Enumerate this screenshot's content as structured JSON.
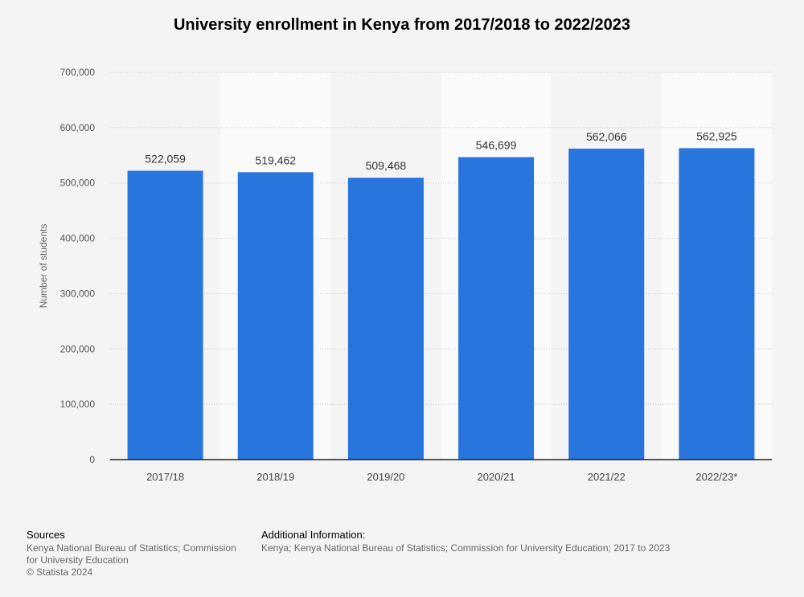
{
  "chart_data": {
    "type": "bar",
    "title": "University enrollment in Kenya from 2017/2018 to 2022/2023",
    "ylabel": "Number of students",
    "categories": [
      "2017/18",
      "2018/19",
      "2019/20",
      "2020/21",
      "2021/22",
      "2022/23*"
    ],
    "values": [
      522059,
      519462,
      509468,
      546699,
      562066,
      562925
    ],
    "value_labels": [
      "522,059",
      "519,462",
      "509,468",
      "546,699",
      "562,066",
      "562,925"
    ],
    "ylim": [
      0,
      700000
    ],
    "yticks": [
      0,
      100000,
      200000,
      300000,
      400000,
      500000,
      600000,
      700000
    ],
    "ytick_labels": [
      "0",
      "100,000",
      "200,000",
      "300,000",
      "400,000",
      "500,000",
      "600,000",
      "700,000"
    ],
    "grid": true,
    "bar_color": "#2775dd"
  },
  "footer": {
    "sources_heading": "Sources",
    "sources_line1": "Kenya National Bureau of Statistics; Commission",
    "sources_line2": "for University Education",
    "copyright": "© Statista 2024",
    "additional_heading": "Additional Information:",
    "additional_text": "Kenya; Kenya National Bureau of Statistics; Commission for University Education; 2017 to 2023"
  }
}
